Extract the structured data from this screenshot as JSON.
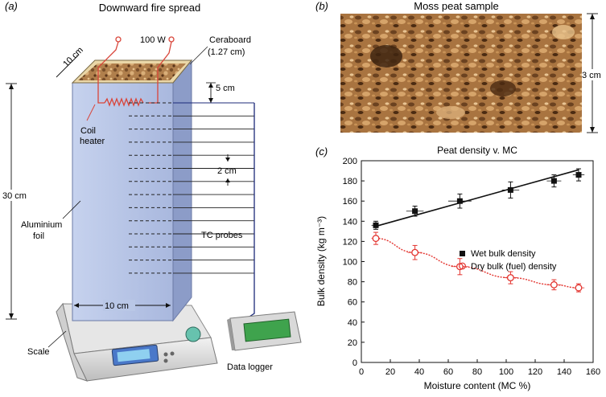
{
  "panel_a": {
    "label": "(a)",
    "title": "Downward fire spread",
    "labels": {
      "ceraboard": "Ceraboard",
      "ceraboard_thickness": "(1.27 cm)",
      "power": "100 W",
      "top_width": "10 cm",
      "probe_top_spacing": "5 cm",
      "coil_line1": "Coil",
      "coil_line2": "heater",
      "probe_spacing": "2 cm",
      "height": "30 cm",
      "foil_line1": "Aluminium",
      "foil_line2": "foil",
      "tc_probes": "TC probes",
      "bottom_width": "10 cm",
      "scale": "Scale",
      "data_logger": "Data logger"
    },
    "colors": {
      "column": "#b9c7e6",
      "column_side": "#8f9fc7",
      "heater": "#d9453a",
      "wire": "#1c2a7a",
      "peat": "#b88a55"
    }
  },
  "panel_b": {
    "label": "(b)",
    "title": "Moss peat sample",
    "scale_label": "3 cm"
  },
  "panel_c": {
    "label": "(c)",
    "chart_data": {
      "type": "scatter",
      "title": "Peat density v. MC",
      "xlabel": "Moisture content (MC %)",
      "ylabel": "Bulk density (kg m⁻³)",
      "xlim": [
        0,
        160
      ],
      "ylim": [
        0,
        200
      ],
      "xticks": [
        0,
        20,
        40,
        60,
        80,
        100,
        120,
        140,
        160
      ],
      "yticks": [
        0,
        20,
        40,
        60,
        80,
        100,
        120,
        140,
        160,
        180,
        200
      ],
      "legend_position": "center-right",
      "series": [
        {
          "name": "Wet bulk density",
          "marker": "filled-square",
          "color": "#111111",
          "x": [
            10,
            37,
            68,
            103,
            133,
            150
          ],
          "y": [
            136,
            150,
            160,
            171,
            180,
            186
          ],
          "yerr": [
            4,
            5,
            7,
            8,
            6,
            6
          ],
          "xerr": [
            3,
            6,
            8,
            6,
            5,
            4
          ],
          "trend": "linear",
          "trend_x": [
            10,
            150
          ],
          "trend_y": [
            135,
            191
          ]
        },
        {
          "name": "Dry bulk (fuel) density",
          "marker": "open-circle",
          "color": "#e3342f",
          "x": [
            10,
            37,
            68,
            103,
            133,
            150
          ],
          "y": [
            123,
            109,
            95,
            84,
            77,
            74
          ],
          "yerr": [
            6,
            7,
            8,
            6,
            5,
            4
          ],
          "xerr": [
            3,
            5,
            6,
            5,
            5,
            4
          ],
          "trend": "power-decay"
        }
      ]
    }
  }
}
